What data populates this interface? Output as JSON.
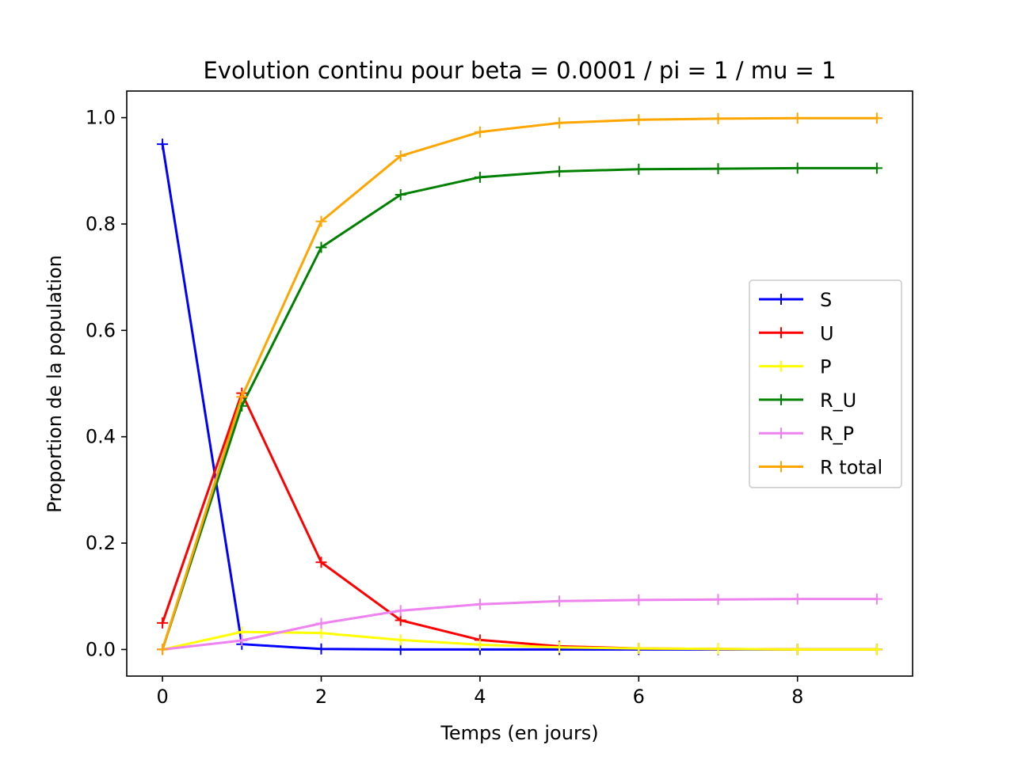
{
  "chart_data": {
    "type": "line",
    "title": "Evolution continu pour beta = 0.0001 / pi = 1 / mu = 1",
    "xlabel": "Temps (en jours)",
    "ylabel": "Proportion de la population",
    "x": [
      0,
      1,
      2,
      3,
      4,
      5,
      6,
      7,
      8,
      9
    ],
    "xlim": [
      -0.45,
      9.45
    ],
    "ylim": [
      -0.05,
      1.05
    ],
    "xticks": [
      0,
      2,
      4,
      6,
      8
    ],
    "yticks": [
      0.0,
      0.2,
      0.4,
      0.6,
      0.8,
      1.0
    ],
    "xtick_labels": [
      "0",
      "2",
      "4",
      "6",
      "8"
    ],
    "ytick_labels": [
      "0.0",
      "0.2",
      "0.4",
      "0.6",
      "0.8",
      "1.0"
    ],
    "grid": false,
    "legend_position": "center-right",
    "marker": "+",
    "series": [
      {
        "name": "S",
        "color": "#0000ff",
        "values": [
          0.95,
          0.01,
          0.001,
          0.0,
          0.0,
          0.0,
          0.0,
          0.0,
          0.0,
          0.0
        ]
      },
      {
        "name": "U",
        "color": "#ff0000",
        "values": [
          0.05,
          0.482,
          0.164,
          0.055,
          0.018,
          0.006,
          0.002,
          0.001,
          0.0,
          0.0
        ]
      },
      {
        "name": "P",
        "color": "#ffff00",
        "values": [
          0.0,
          0.033,
          0.031,
          0.018,
          0.009,
          0.004,
          0.002,
          0.001,
          0.0,
          0.0
        ]
      },
      {
        "name": "R_U",
        "color": "#008000",
        "values": [
          0.0,
          0.458,
          0.756,
          0.855,
          0.888,
          0.899,
          0.903,
          0.904,
          0.905,
          0.905
        ]
      },
      {
        "name": "R_P",
        "color": "#ee82ee",
        "values": [
          0.0,
          0.017,
          0.049,
          0.073,
          0.085,
          0.091,
          0.093,
          0.094,
          0.095,
          0.095
        ]
      },
      {
        "name": "R total",
        "color": "#ffa500",
        "values": [
          0.0,
          0.475,
          0.805,
          0.928,
          0.973,
          0.99,
          0.996,
          0.998,
          0.999,
          0.999
        ]
      }
    ]
  }
}
